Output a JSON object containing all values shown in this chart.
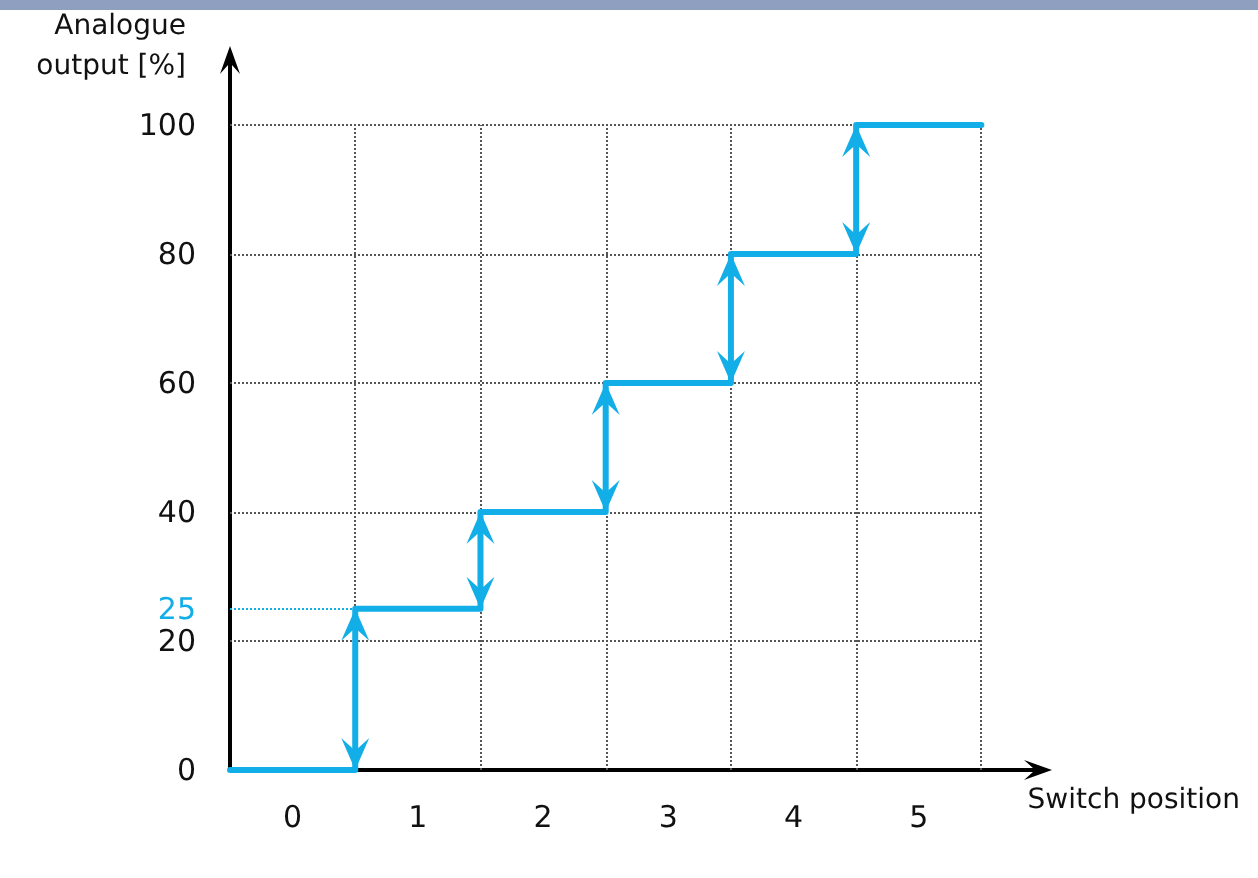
{
  "chart_data": {
    "type": "step",
    "xlabel": "Switch position",
    "ylabel": "Analogue\noutput [%]",
    "x": [
      -0.5,
      0.5,
      1.5,
      2.5,
      3.5,
      4.5,
      5.5
    ],
    "values": [
      0,
      25,
      40,
      60,
      80,
      100,
      100
    ],
    "color": "#12aee8",
    "xlim": [
      -0.5,
      6
    ],
    "ylim": [
      0,
      111
    ],
    "xticks": [
      {
        "value": -0.5,
        "label": null
      },
      0,
      {
        "value": 0.5,
        "label": null
      },
      1,
      {
        "value": 1.5,
        "label": null
      },
      2,
      {
        "value": 2.5,
        "label": null
      },
      3,
      {
        "value": 3.5,
        "label": null
      },
      4,
      {
        "value": 4.5,
        "label": null
      },
      5,
      {
        "value": 5.5,
        "label": null
      }
    ],
    "yticks": [
      0,
      20,
      40,
      60,
      80,
      100
    ],
    "ref_lines": [
      {
        "axis": "y",
        "value": 25,
        "label": "25",
        "color": "#12aee8",
        "line_style": "dotted"
      }
    ],
    "grid": true
  }
}
